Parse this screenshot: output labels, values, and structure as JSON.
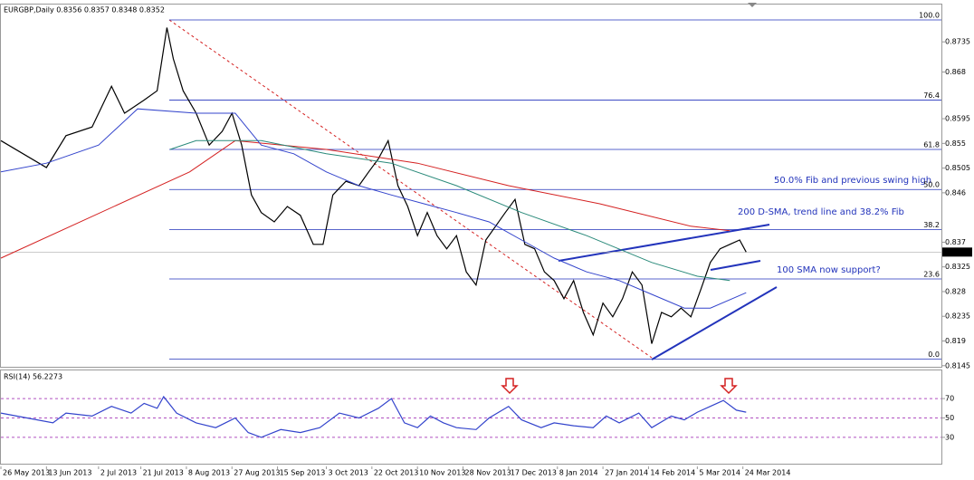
{
  "chart_data": [
    {
      "type": "line",
      "title": "EURGBP,Daily  0.8356 0.8357 0.8348 0.8352",
      "xlim": [
        0,
        289
      ],
      "ylim": [
        0.8143,
        0.8803
      ],
      "yticks": [
        0.8145,
        0.819,
        0.8235,
        0.828,
        0.8325,
        0.837,
        0.846,
        0.8505,
        0.855,
        0.8595,
        0.868,
        0.8735
      ],
      "last_price": 0.8352,
      "fib_levels": [
        {
          "label": "100.0",
          "value": 0.8775
        },
        {
          "label": "76.4",
          "value": 0.8629
        },
        {
          "label": "61.8",
          "value": 0.8539
        },
        {
          "label": "50.0",
          "value": 0.8466
        },
        {
          "label": "38.2",
          "value": 0.8393
        },
        {
          "label": "23.6",
          "value": 0.8303
        },
        {
          "label": "0.0",
          "value": 0.8157
        }
      ],
      "annotations": [
        "50.0% Fib and previous swing high",
        "200 D-SMA, trend line and 38.2% Fib",
        "100 SMA now support?"
      ],
      "series": [
        {
          "color": "#000000",
          "x": [
            0,
            14,
            20,
            28,
            34,
            38,
            44,
            48,
            51,
            53,
            56,
            60,
            64,
            68,
            71,
            74,
            77,
            80,
            84,
            88,
            92,
            96,
            99,
            102,
            106,
            110,
            113,
            116,
            119,
            122,
            125,
            128,
            131,
            134,
            137,
            140,
            143,
            146,
            149,
            152,
            155,
            158,
            161,
            164,
            167,
            170,
            173,
            176,
            179,
            182,
            185,
            188,
            191,
            194,
            197,
            200,
            203,
            206,
            209,
            212,
            215,
            218,
            221,
            224,
            227,
            229
          ],
          "values": [
            0.8555,
            0.8506,
            0.8564,
            0.858,
            0.8654,
            0.8605,
            0.8629,
            0.8646,
            0.8761,
            0.8704,
            0.8646,
            0.8605,
            0.8547,
            0.8572,
            0.8605,
            0.8547,
            0.8456,
            0.8424,
            0.8407,
            0.8435,
            0.8419,
            0.8366,
            0.8366,
            0.8456,
            0.8481,
            0.8473,
            0.8498,
            0.8522,
            0.8555,
            0.8473,
            0.8435,
            0.8382,
            0.8424,
            0.8382,
            0.8358,
            0.8382,
            0.8316,
            0.8292,
            0.8374,
            0.8399,
            0.8424,
            0.8448,
            0.8366,
            0.8358,
            0.8316,
            0.83,
            0.8267,
            0.83,
            0.8242,
            0.8201,
            0.8259,
            0.8234,
            0.8267,
            0.8316,
            0.8292,
            0.8185,
            0.8242,
            0.8234,
            0.825,
            0.8234,
            0.8283,
            0.8333,
            0.8358,
            0.8366,
            0.8374,
            0.8352
          ]
        },
        {
          "color": "#d42020",
          "x": [
            0,
            58,
            72,
            100,
            128,
            156,
            184,
            212,
            224
          ],
          "values": [
            0.8341,
            0.8498,
            0.8555,
            0.8539,
            0.8514,
            0.8473,
            0.844,
            0.8399,
            0.8391
          ]
        },
        {
          "color": "#2a8a7a",
          "x": [
            52,
            60,
            80,
            100,
            120,
            140,
            160,
            180,
            200,
            214,
            224
          ],
          "values": [
            0.8539,
            0.8555,
            0.8555,
            0.8531,
            0.8514,
            0.8473,
            0.8424,
            0.8382,
            0.8333,
            0.8308,
            0.83
          ]
        },
        {
          "color": "#3344cc",
          "x": [
            0,
            14,
            30,
            42,
            60,
            72,
            80,
            90,
            100,
            110,
            120,
            130,
            140,
            150,
            160,
            170,
            180,
            190,
            200,
            210,
            218,
            229
          ],
          "values": [
            0.8498,
            0.8514,
            0.8547,
            0.8613,
            0.8605,
            0.8605,
            0.8547,
            0.8531,
            0.8498,
            0.8473,
            0.8456,
            0.844,
            0.8424,
            0.8407,
            0.8374,
            0.8341,
            0.8316,
            0.83,
            0.8275,
            0.825,
            0.825,
            0.8278
          ]
        }
      ]
    },
    {
      "type": "line",
      "title": "RSI(14) 56.2273",
      "xlim": [
        0,
        289
      ],
      "ylim": [
        0,
        100
      ],
      "yticks": [
        30,
        50,
        70
      ],
      "xticks": [
        {
          "value": 0,
          "label": "26 May 2013"
        },
        {
          "value": 14,
          "label": "13 Jun 2013"
        },
        {
          "value": 30,
          "label": "2 Jul 2013"
        },
        {
          "value": 43,
          "label": "21 Jul 2013"
        },
        {
          "value": 57,
          "label": "8 Aug 2013"
        },
        {
          "value": 71,
          "label": "27 Aug 2013"
        },
        {
          "value": 85,
          "label": "15 Sep 2013"
        },
        {
          "value": 100,
          "label": "3 Oct 2013"
        },
        {
          "value": 114,
          "label": "22 Oct 2013"
        },
        {
          "value": 128,
          "label": "10 Nov 2013"
        },
        {
          "value": 142,
          "label": "28 Nov 2013"
        },
        {
          "value": 156,
          "label": "17 Dec 2013"
        },
        {
          "value": 171,
          "label": "8 Jan 2014"
        },
        {
          "value": 185,
          "label": "27 Jan 2014"
        },
        {
          "value": 199,
          "label": "14 Feb 2014"
        },
        {
          "value": 214,
          "label": "5 Mar 2014"
        },
        {
          "value": 228,
          "label": "24 Mar 2014"
        }
      ],
      "series": [
        {
          "color": "#3344cc",
          "x": [
            0,
            8,
            16,
            20,
            28,
            34,
            40,
            44,
            48,
            50,
            54,
            60,
            66,
            72,
            76,
            80,
            86,
            92,
            98,
            104,
            110,
            116,
            120,
            124,
            128,
            132,
            136,
            140,
            146,
            150,
            156,
            160,
            166,
            170,
            176,
            182,
            186,
            190,
            196,
            200,
            206,
            210,
            214,
            218,
            222,
            226,
            229
          ],
          "values": [
            55,
            50,
            45,
            55,
            52,
            62,
            55,
            65,
            60,
            72,
            55,
            45,
            40,
            50,
            35,
            30,
            38,
            35,
            40,
            55,
            50,
            60,
            70,
            45,
            40,
            52,
            45,
            40,
            38,
            50,
            62,
            48,
            40,
            45,
            42,
            40,
            52,
            45,
            55,
            40,
            52,
            48,
            56,
            62,
            68,
            58,
            56
          ]
        }
      ]
    }
  ]
}
